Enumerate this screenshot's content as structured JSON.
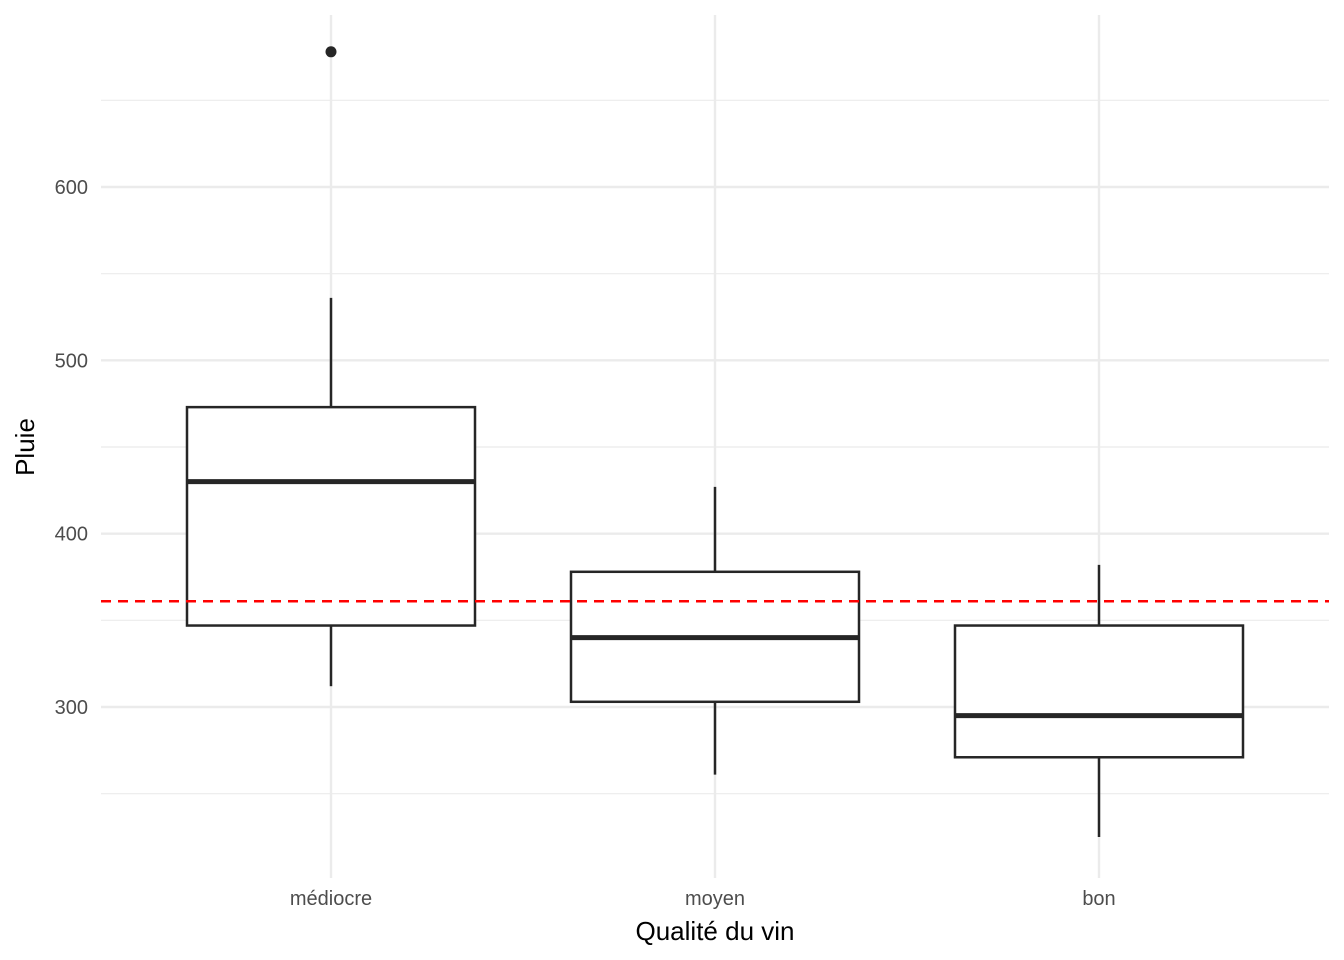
{
  "chart_data": {
    "type": "boxplot",
    "title": "",
    "xlabel": "Qualité du vin",
    "ylabel": "Pluie",
    "categories": [
      "médiocre",
      "moyen",
      "bon"
    ],
    "boxes": [
      {
        "category": "médiocre",
        "whisker_low": 312,
        "q1": 347,
        "median": 430,
        "q3": 473,
        "whisker_high": 536,
        "outliers": [
          678
        ]
      },
      {
        "category": "moyen",
        "whisker_low": 261,
        "q1": 303,
        "median": 340,
        "q3": 378,
        "whisker_high": 427,
        "outliers": []
      },
      {
        "category": "bon",
        "whisker_low": 225,
        "q1": 271,
        "median": 295,
        "q3": 347,
        "whisker_high": 382,
        "outliers": []
      }
    ],
    "reference_line": {
      "y": 361,
      "color": "#ff0000",
      "style": "dashed"
    },
    "y_ticks": [
      300,
      400,
      500,
      600
    ],
    "y_tick_labels": [
      "300",
      "400",
      "500",
      "600"
    ],
    "ylim": [
      210,
      686
    ],
    "grid": true,
    "colors": {
      "box_stroke": "#262626",
      "grid": "#ebebeb",
      "reference": "#ff0000"
    }
  }
}
